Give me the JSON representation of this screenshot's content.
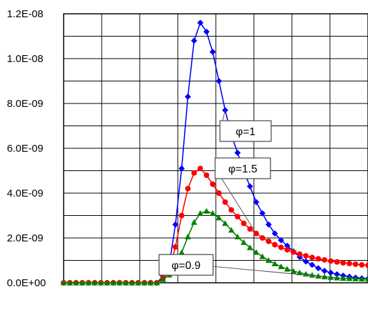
{
  "chart_data": {
    "type": "line",
    "title": "",
    "xlabel": "",
    "ylabel": "",
    "ylim": [
      0,
      1.2e-08
    ],
    "y_ticks": [
      "0.0E+00",
      "2.0E-09",
      "4.0E-09",
      "6.0E-09",
      "8.0E-09",
      "1.0E-08",
      "1.2E-08"
    ],
    "x_ticks": [],
    "grid": true,
    "legend": "callout labels",
    "series": [
      {
        "name": "φ=1",
        "color": "#0000ff",
        "marker": "diamond",
        "x": [
          0,
          1,
          2,
          3,
          4,
          5,
          6,
          7,
          8,
          9,
          10,
          11,
          12,
          13,
          14,
          15,
          16,
          17,
          18,
          19,
          20,
          21,
          22,
          23,
          24,
          25,
          26,
          27,
          28,
          29,
          30,
          31,
          32,
          33,
          34,
          35,
          36,
          37,
          38,
          39,
          40,
          41,
          42,
          43,
          44,
          45,
          46,
          47,
          48,
          49
        ],
        "values": [
          0,
          0,
          0,
          0,
          0,
          0,
          0,
          0,
          0,
          0,
          0,
          0,
          0,
          0,
          0,
          0,
          3e-10,
          8e-10,
          2.6e-09,
          5.1e-09,
          8.3e-09,
          1.08e-08,
          1.16e-08,
          1.12e-08,
          1.03e-08,
          9e-09,
          7.7e-09,
          6.6e-09,
          5.8e-09,
          5e-09,
          4.3e-09,
          3.6e-09,
          3.1e-09,
          2.6e-09,
          2.2e-09,
          1.9e-09,
          1.65e-09,
          1.4e-09,
          1.15e-09,
          9.5e-10,
          8e-10,
          6.5e-10,
          5.3e-10,
          4.5e-10,
          3.8e-10,
          3.2e-10,
          2.7e-10,
          2.3e-10,
          2e-10,
          1.8e-10
        ]
      },
      {
        "name": "φ=1.5",
        "color": "#ff0000",
        "marker": "circle",
        "x": [
          0,
          1,
          2,
          3,
          4,
          5,
          6,
          7,
          8,
          9,
          10,
          11,
          12,
          13,
          14,
          15,
          16,
          17,
          18,
          19,
          20,
          21,
          22,
          23,
          24,
          25,
          26,
          27,
          28,
          29,
          30,
          31,
          32,
          33,
          34,
          35,
          36,
          37,
          38,
          39,
          40,
          41,
          42,
          43,
          44,
          45,
          46,
          47,
          48,
          49
        ],
        "values": [
          0,
          0,
          0,
          0,
          0,
          0,
          0,
          0,
          0,
          0,
          0,
          0,
          0,
          0,
          0,
          0,
          2e-10,
          6e-10,
          1.6e-09,
          3e-09,
          4.2e-09,
          4.9e-09,
          5.1e-09,
          4.8e-09,
          4.4e-09,
          4e-09,
          3.6e-09,
          3.25e-09,
          2.95e-09,
          2.65e-09,
          2.4e-09,
          2.2e-09,
          2e-09,
          1.85e-09,
          1.7e-09,
          1.58e-09,
          1.47e-09,
          1.37e-09,
          1.28e-09,
          1.2e-09,
          1.13e-09,
          1.07e-09,
          1.02e-09,
          9.7e-10,
          9.3e-10,
          8.9e-10,
          8.6e-10,
          8.3e-10,
          8e-10,
          7.8e-10
        ]
      },
      {
        "name": "φ=0.9",
        "color": "#008000",
        "marker": "triangle",
        "x": [
          0,
          1,
          2,
          3,
          4,
          5,
          6,
          7,
          8,
          9,
          10,
          11,
          12,
          13,
          14,
          15,
          16,
          17,
          18,
          19,
          20,
          21,
          22,
          23,
          24,
          25,
          26,
          27,
          28,
          29,
          30,
          31,
          32,
          33,
          34,
          35,
          36,
          37,
          38,
          39,
          40,
          41,
          42,
          43,
          44,
          45,
          46,
          47,
          48,
          49
        ],
        "values": [
          0,
          0,
          0,
          0,
          0,
          0,
          0,
          0,
          0,
          0,
          0,
          0,
          0,
          0,
          0,
          0,
          1.5e-10,
          3.5e-10,
          7.5e-10,
          1.35e-09,
          2.05e-09,
          2.7e-09,
          3.1e-09,
          3.2e-09,
          3.1e-09,
          2.9e-09,
          2.65e-09,
          2.35e-09,
          2.05e-09,
          1.8e-09,
          1.57e-09,
          1.36e-09,
          1.17e-09,
          1e-09,
          8.5e-10,
          7.2e-10,
          6.1e-10,
          5.2e-10,
          4.5e-10,
          3.9e-10,
          3.4e-10,
          3e-10,
          2.7e-10,
          2.4e-10,
          2.2e-10,
          2e-10,
          1.9e-10,
          1.8e-10,
          1.7e-10,
          1.6e-10
        ]
      }
    ],
    "callouts": [
      {
        "series": 0,
        "text": "φ=1"
      },
      {
        "series": 1,
        "text": "φ=1.5"
      },
      {
        "series": 2,
        "text": "φ=0.9"
      }
    ]
  }
}
